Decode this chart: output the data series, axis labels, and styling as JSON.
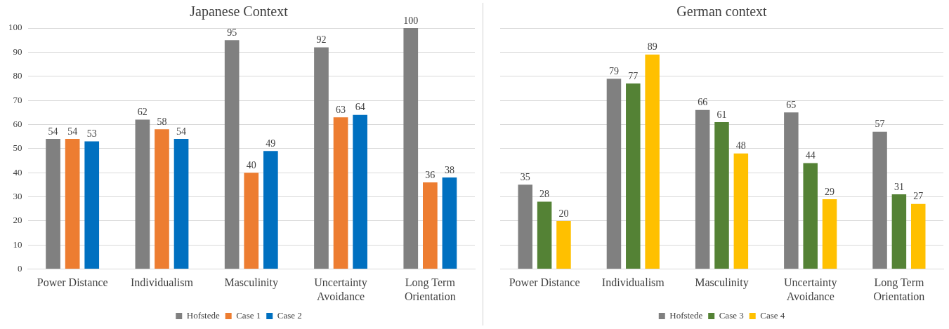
{
  "chart_data": [
    {
      "type": "bar",
      "title": "Japanese Context",
      "categories": [
        "Power Distance",
        "Individualism",
        "Masculinity",
        "Uncertainty Avoidance",
        "Long Term Orientation"
      ],
      "series": [
        {
          "name": "Hofstede",
          "color": "#808080",
          "values": [
            54,
            62,
            95,
            92,
            100
          ]
        },
        {
          "name": "Case 1",
          "color": "#ed7d31",
          "values": [
            54,
            58,
            40,
            63,
            36
          ]
        },
        {
          "name": "Case 2",
          "color": "#0070c0",
          "values": [
            53,
            54,
            49,
            64,
            38
          ]
        }
      ],
      "ylim": [
        0,
        100
      ],
      "yticks": [
        0,
        10,
        20,
        30,
        40,
        50,
        60,
        70,
        80,
        90,
        100
      ],
      "grid": "y",
      "legend": "bottom",
      "data_labels": true
    },
    {
      "type": "bar",
      "title": "German context",
      "categories": [
        "Power Distance",
        "Individualism",
        "Masculinity",
        "Uncertainty Avoidance",
        "Long Term Orientation"
      ],
      "series": [
        {
          "name": "Hofstede",
          "color": "#808080",
          "values": [
            35,
            79,
            66,
            65,
            57
          ]
        },
        {
          "name": "Case 3",
          "color": "#548235",
          "values": [
            28,
            77,
            61,
            44,
            31
          ]
        },
        {
          "name": "Case 4",
          "color": "#ffc000",
          "values": [
            20,
            89,
            48,
            29,
            27
          ]
        }
      ],
      "ylim": [
        0,
        100
      ],
      "yticks": [
        0,
        10,
        20,
        30,
        40,
        50,
        60,
        70,
        80,
        90,
        100
      ],
      "grid": "y",
      "legend": "bottom",
      "data_labels": true,
      "tick_labels": "x"
    }
  ]
}
